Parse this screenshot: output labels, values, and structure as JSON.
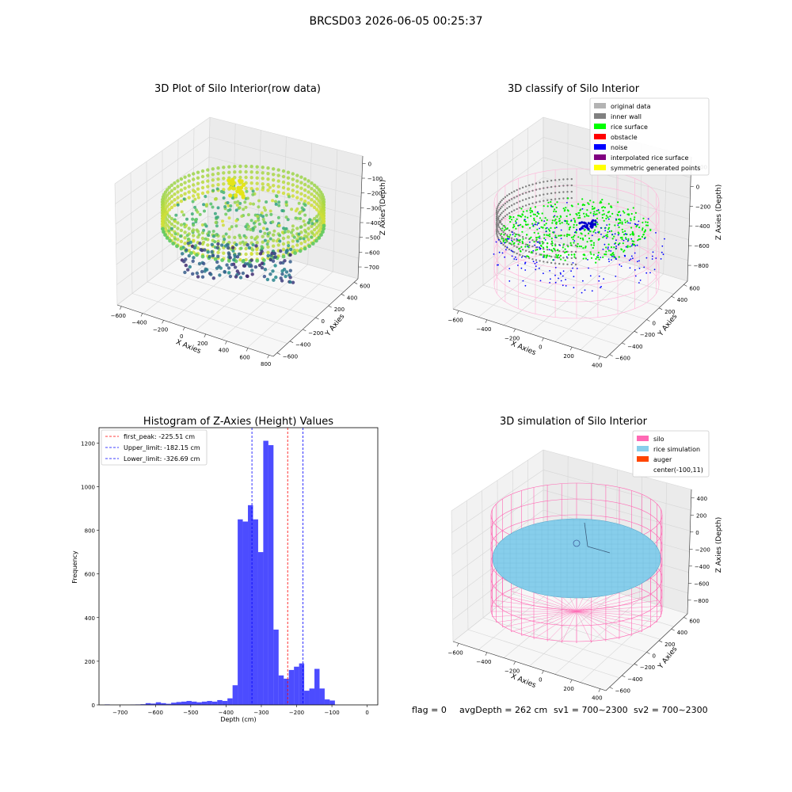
{
  "figure": {
    "suptitle": "BRCSD03 2026-06-05 00:25:37",
    "footer": {
      "flag": "flag = 0",
      "avg_depth": "avgDepth = 262 cm",
      "sv1": "sv1 = 700~2300",
      "sv2": "sv2 = 700~2300"
    }
  },
  "chart_data": [
    {
      "id": "raw",
      "type": "scatter",
      "title": "3D Plot of Silo Interior(row data)",
      "xlabel": "X Axies",
      "ylabel": "Y Axies",
      "zlabel": "Z Axies (Depth)",
      "x_ticks": [
        "−600",
        "−400",
        "−200",
        "0",
        "200",
        "400",
        "600",
        "800"
      ],
      "y_ticks": [
        "600",
        "400",
        "200",
        "0",
        "−200",
        "−400",
        "−600"
      ],
      "z_ticks": [
        "0",
        "−100",
        "−200",
        "−300",
        "−400",
        "−500",
        "−600",
        "−700"
      ],
      "colormap": "viridis"
    },
    {
      "id": "classify",
      "type": "scatter",
      "title": "3D classify of Silo Interior",
      "xlabel": "X Axies",
      "ylabel": "Y Axies",
      "zlabel": "Z Axies (Depth)",
      "x_ticks": [
        "−600",
        "−400",
        "−200",
        "0",
        "200",
        "400"
      ],
      "y_ticks": [
        "600",
        "400",
        "200",
        "0",
        "−200",
        "−400",
        "−600"
      ],
      "z_ticks": [
        "200",
        "0",
        "−200",
        "−400",
        "−600",
        "−800"
      ],
      "legend_position": "top-right",
      "legend": [
        {
          "label": "original data",
          "color": "#b3b3b3"
        },
        {
          "label": "inner wall",
          "color": "#808080"
        },
        {
          "label": "rice surface",
          "color": "#00ff00"
        },
        {
          "label": "obstacle",
          "color": "#ff0000"
        },
        {
          "label": "noise",
          "color": "#0000ff"
        },
        {
          "label": "interpolated rice surface",
          "color": "#800080"
        },
        {
          "label": "symmetric generated points",
          "color": "#ffff00"
        }
      ]
    },
    {
      "id": "histogram",
      "type": "bar",
      "title": "Histogram of Z-Axies (Height) Values",
      "xlabel": "Depth (cm)",
      "ylabel": "Frequency",
      "xlim": [
        -760,
        30
      ],
      "ylim": [
        0,
        1270
      ],
      "x_ticks": [
        -700,
        -600,
        -500,
        -400,
        -300,
        -200,
        -100,
        0
      ],
      "y_ticks": [
        0,
        200,
        400,
        600,
        800,
        1000,
        1200
      ],
      "bar_color": "#0000ff",
      "bin_edges_start": -744,
      "bin_width": 14.5,
      "values": [
        2,
        0,
        0,
        0,
        0,
        1,
        2,
        3,
        8,
        6,
        12,
        8,
        5,
        10,
        13,
        15,
        18,
        15,
        12,
        15,
        18,
        15,
        22,
        18,
        30,
        90,
        850,
        840,
        915,
        850,
        700,
        1210,
        1190,
        345,
        135,
        120,
        160,
        175,
        190,
        65,
        75,
        165,
        75,
        25,
        20
      ],
      "lines": [
        {
          "label": "first_peak: -225.51 cm",
          "x": -225.51,
          "color": "#ff0000"
        },
        {
          "label": "Upper_limit: -182.15 cm",
          "x": -182.15,
          "color": "#0000ff"
        },
        {
          "label": "Lower_limit: -326.69 cm",
          "x": -326.69,
          "color": "#0000ff"
        }
      ],
      "legend_position": "top-left"
    },
    {
      "id": "simulation",
      "type": "area",
      "title": "3D simulation of Silo Interior",
      "xlabel": "X Axies",
      "ylabel": "Y Axies",
      "zlabel": "Z Axies (Depth)",
      "x_ticks": [
        "−600",
        "−400",
        "−200",
        "0",
        "200",
        "400"
      ],
      "y_ticks": [
        "600",
        "400",
        "200",
        "0",
        "−200",
        "−400",
        "−600"
      ],
      "z_ticks": [
        "400",
        "200",
        "0",
        "−200",
        "−400",
        "−600",
        "−800"
      ],
      "legend_position": "top-right",
      "legend": [
        {
          "label": "silo",
          "color": "#ff69b4"
        },
        {
          "label": "rice simulation",
          "color": "#87ceeb"
        },
        {
          "label": "auger",
          "color": "#ff4500"
        },
        {
          "label": "center(-100,11)",
          "color": ""
        }
      ]
    }
  ]
}
